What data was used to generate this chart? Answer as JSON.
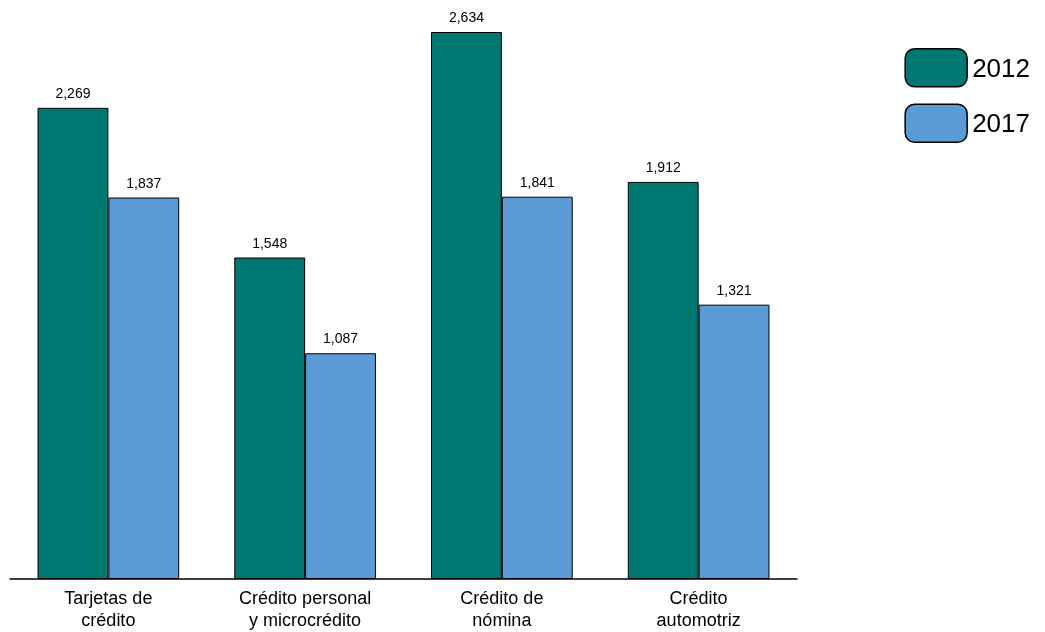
{
  "chart_data": {
    "type": "bar",
    "categories": [
      "Tarjetas de\ncrédito",
      "Crédito personal\ny microcrédito",
      "Crédito de\nnómina",
      "Crédito\nautomotriz"
    ],
    "series": [
      {
        "name": "2012",
        "color": "#007770",
        "values": [
          2269,
          1548,
          2634,
          1912
        ],
        "value_labels": [
          "2,269",
          "1,548",
          "2,634",
          "1,912"
        ]
      },
      {
        "name": "2017",
        "color": "#5b9bd5",
        "values": [
          1837,
          1087,
          1841,
          1321
        ],
        "value_labels": [
          "1,837",
          "1,087",
          "1,841",
          "1,321"
        ]
      }
    ],
    "legend": "top right",
    "grid": false
  }
}
